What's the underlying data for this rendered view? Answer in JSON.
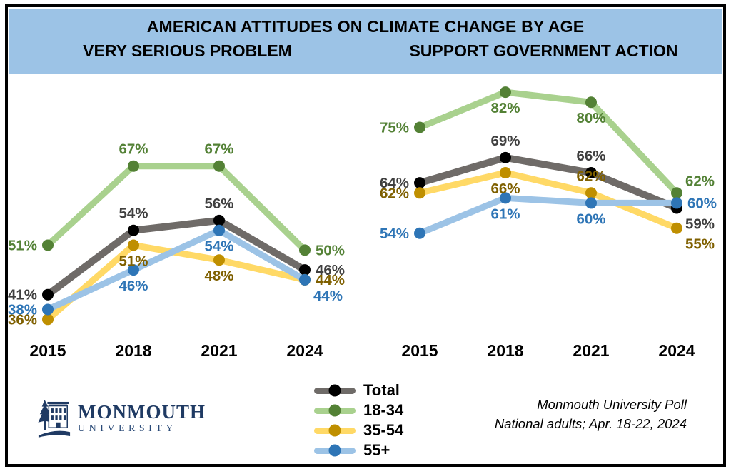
{
  "header": {
    "title": "AMERICAN ATTITUDES ON CLIMATE CHANGE BY AGE",
    "left_subtitle": "VERY SERIOUS PROBLEM",
    "right_subtitle": "SUPPORT GOVERNMENT ACTION",
    "background_color": "#9cc3e6"
  },
  "legend": {
    "items": [
      {
        "label": "Total",
        "line_color": "#6f6b68",
        "marker_color": "#000000"
      },
      {
        "label": "18-34",
        "line_color": "#a9d18e",
        "marker_color": "#538135"
      },
      {
        "label": "35-54",
        "line_color": "#ffd966",
        "marker_color": "#bf8f00"
      },
      {
        "label": "55+",
        "line_color": "#9cc3e6",
        "marker_color": "#2e75b6"
      }
    ]
  },
  "footer": {
    "logo_line1": "MONMOUTH",
    "logo_line2": "UNIVERSITY",
    "source_line1": "Monmouth University Poll",
    "source_line2": "National adults; Apr. 18-22, 2024"
  },
  "chart_data": [
    {
      "type": "line",
      "title": "VERY SERIOUS PROBLEM",
      "categories": [
        "2015",
        "2018",
        "2021",
        "2024"
      ],
      "ylim": [
        32,
        84
      ],
      "grid": false,
      "axes_shown": false,
      "legend_position": "bottom",
      "label_format": "{v}%",
      "series": [
        {
          "name": "Total",
          "line_color": "#6f6b68",
          "marker_color": "#000000",
          "label_color": "#404040",
          "values": [
            41,
            54,
            56,
            46
          ],
          "label_placement": [
            "left",
            "above",
            "above",
            "right"
          ]
        },
        {
          "name": "18-34",
          "line_color": "#a9d18e",
          "marker_color": "#538135",
          "label_color": "#538135",
          "values": [
            51,
            67,
            67,
            50
          ],
          "label_placement": [
            "left",
            "above",
            "above",
            "right"
          ]
        },
        {
          "name": "35-54",
          "line_color": "#ffd966",
          "marker_color": "#bf8f00",
          "label_color": "#7f6000",
          "values": [
            36,
            51,
            48,
            44
          ],
          "label_placement": [
            "left",
            "below",
            "below",
            "right"
          ]
        },
        {
          "name": "55+",
          "line_color": "#9cc3e6",
          "marker_color": "#2e75b6",
          "label_color": "#2e75b6",
          "values": [
            38,
            46,
            54,
            44
          ],
          "label_placement": [
            "left",
            "below",
            "below",
            "below-right"
          ]
        }
      ]
    },
    {
      "type": "line",
      "title": "SUPPORT GOVERNMENT ACTION",
      "categories": [
        "2015",
        "2018",
        "2021",
        "2024"
      ],
      "ylim": [
        33,
        84
      ],
      "grid": false,
      "axes_shown": false,
      "legend_position": "bottom",
      "label_format": "{v}%",
      "series": [
        {
          "name": "Total",
          "line_color": "#6f6b68",
          "marker_color": "#000000",
          "label_color": "#404040",
          "values": [
            64,
            69,
            66,
            59
          ],
          "label_placement": [
            "left",
            "above",
            "above",
            "below-right"
          ]
        },
        {
          "name": "18-34",
          "line_color": "#a9d18e",
          "marker_color": "#538135",
          "label_color": "#538135",
          "values": [
            75,
            82,
            80,
            62
          ],
          "label_placement": [
            "left",
            "below",
            "below",
            "above-right"
          ]
        },
        {
          "name": "35-54",
          "line_color": "#ffd966",
          "marker_color": "#bf8f00",
          "label_color": "#7f6000",
          "values": [
            62,
            66,
            62,
            55
          ],
          "label_placement": [
            "left",
            "below",
            "above",
            "below-right"
          ]
        },
        {
          "name": "55+",
          "line_color": "#9cc3e6",
          "marker_color": "#2e75b6",
          "label_color": "#2e75b6",
          "values": [
            54,
            61,
            60,
            60
          ],
          "label_placement": [
            "left",
            "below",
            "below",
            "right"
          ]
        }
      ]
    }
  ]
}
